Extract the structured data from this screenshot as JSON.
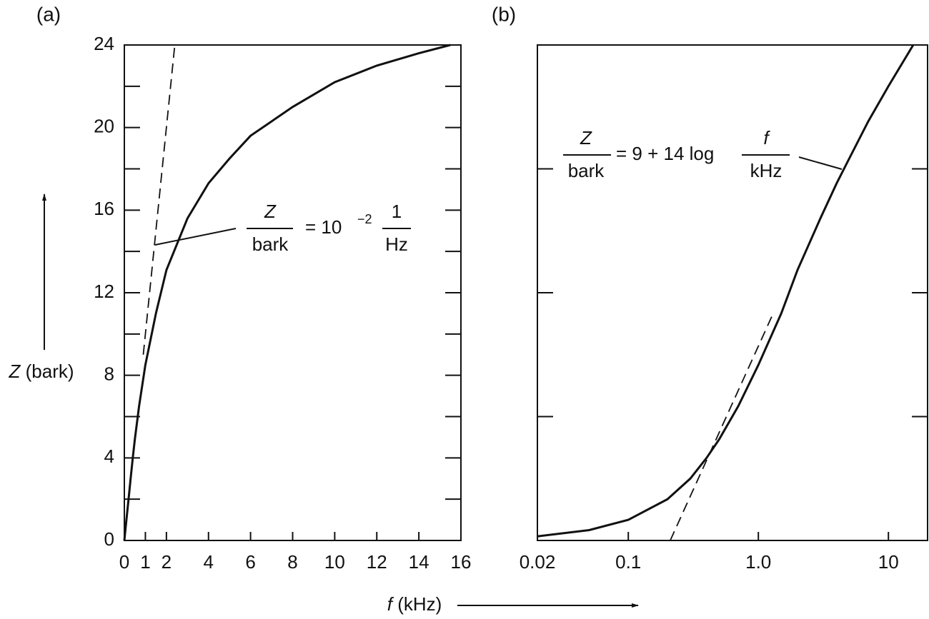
{
  "figure": {
    "xlabel": {
      "symbol": "f",
      "unit": "(kHz)"
    },
    "ylabel": {
      "symbol": "Z",
      "unit": "(bark)"
    }
  },
  "chart_data": [
    {
      "type": "line",
      "panel_label": "(a)",
      "xlim": [
        0,
        16
      ],
      "ylim": [
        0,
        24
      ],
      "xticks": [
        0,
        1,
        2,
        4,
        6,
        8,
        10,
        12,
        14,
        16
      ],
      "yticks": [
        0,
        4,
        8,
        12,
        16,
        20,
        24
      ],
      "yminorticks": [
        2,
        6,
        10,
        14,
        18,
        22
      ],
      "lines": [
        {
          "style": "solid",
          "color": "#111111",
          "x": [
            0,
            0.1,
            0.2,
            0.3,
            0.4,
            0.5,
            0.7,
            1,
            1.5,
            2,
            3,
            4,
            5,
            6,
            8,
            10,
            12,
            14,
            15.5
          ],
          "y": [
            0,
            1,
            2,
            3,
            4,
            4.9,
            6.5,
            8.5,
            11,
            13.1,
            15.6,
            17.3,
            18.5,
            19.6,
            21,
            22.2,
            23,
            23.6,
            24
          ]
        },
        {
          "style": "dashed",
          "color": "#111111",
          "x": [
            0.9,
            2.4
          ],
          "y": [
            9,
            24
          ]
        }
      ],
      "annotation": {
        "numerator": "Z",
        "denominator": "bark",
        "text": "= 10",
        "exponent": "−2",
        "numerator2": "1",
        "denominator2": "Hz"
      }
    },
    {
      "type": "line",
      "panel_label": "(b)",
      "xscale": "log",
      "xlim": [
        0.02,
        20
      ],
      "ylim": [
        0,
        24
      ],
      "xticks": [
        0.02,
        0.1,
        {
          "value": 1,
          "label": "1.0"
        },
        10
      ],
      "yticks": [
        6,
        12,
        18
      ],
      "show_ytick_labels": false,
      "lines": [
        {
          "style": "solid",
          "color": "#111111",
          "x": [
            0.02,
            0.05,
            0.1,
            0.2,
            0.3,
            0.4,
            0.5,
            0.7,
            1,
            1.5,
            2,
            3,
            4,
            5,
            7,
            10,
            15.5
          ],
          "y": [
            0.2,
            0.5,
            1,
            2,
            3,
            4,
            4.9,
            6.5,
            8.5,
            11,
            13.1,
            15.6,
            17.3,
            18.5,
            20.3,
            22,
            24
          ]
        },
        {
          "style": "dashed",
          "color": "#111111",
          "x": [
            0.21,
            1.3
          ],
          "y": [
            0,
            11
          ]
        }
      ],
      "annotation": {
        "numerator": "Z",
        "denominator": "bark",
        "text": "= 9 + 14 log",
        "numerator2": "f",
        "denominator2": "kHz"
      }
    }
  ]
}
